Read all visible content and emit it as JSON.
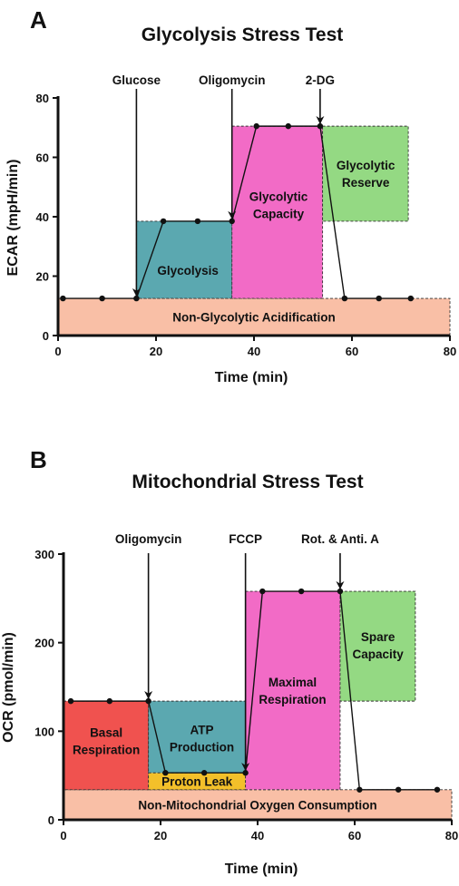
{
  "chart_data": [
    {
      "type": "line",
      "panel": "A",
      "title": "Glycolysis Stress Test",
      "xlabel": "Time (min)",
      "ylabel": "ECAR (mpH/min)",
      "xlim": [
        0,
        80
      ],
      "ylim": [
        0,
        80
      ],
      "xticks": [
        "0",
        "20",
        "40",
        "60",
        "80"
      ],
      "yticks": [
        "0",
        "20",
        "40",
        "60",
        "80"
      ],
      "series": [
        {
          "x": [
            1,
            9,
            16,
            21.5,
            28.5,
            35.5,
            40.5,
            47,
            53.5,
            58.5,
            65.5,
            72
          ],
          "y": [
            12.5,
            12.5,
            12.5,
            38.5,
            38.5,
            38.5,
            70.5,
            70.5,
            70.5,
            12.5,
            12.5,
            12.5
          ]
        }
      ],
      "injections": [
        {
          "label": "Glucose",
          "x": 16
        },
        {
          "label": "Oligomycin",
          "x": 35.5
        },
        {
          "label": "2-DG",
          "x": 53.5
        }
      ],
      "regions": [
        {
          "label": "Non-Glycolytic Acidification",
          "x0": 0,
          "x1": 80,
          "y0": 0,
          "y1": 12.5,
          "color": "#f9bfa6"
        },
        {
          "label": "Glycolysis",
          "x0": 16,
          "x1": 35.5,
          "y0": 12.5,
          "y1": 38.5,
          "color": "#5ba8b0"
        },
        {
          "label": "Glycolytic Capacity",
          "x0": 35.5,
          "x1": 54,
          "y0": 12.5,
          "y1": 70.5,
          "color": "#f26bc6"
        },
        {
          "label": "Glycolytic Reserve",
          "x0": 54,
          "x1": 71.5,
          "y0": 38.5,
          "y1": 70.5,
          "color": "#94d983"
        }
      ]
    },
    {
      "type": "line",
      "panel": "B",
      "title": "Mitochondrial Stress Test",
      "xlabel": "Time (min)",
      "ylabel": "OCR (pmol/min)",
      "xlim": [
        0,
        80
      ],
      "ylim": [
        0,
        300
      ],
      "xticks": [
        "0",
        "20",
        "40",
        "60",
        "80"
      ],
      "yticks": [
        "0",
        "100",
        "200",
        "300"
      ],
      "series": [
        {
          "x": [
            1.5,
            9.5,
            17.5,
            21,
            29,
            37.5,
            41,
            49,
            57,
            61,
            69,
            77
          ],
          "y": [
            134,
            134,
            134,
            53,
            53,
            53,
            258,
            258,
            258,
            34,
            34,
            34
          ]
        }
      ],
      "injections": [
        {
          "label": "Oligomycin",
          "x": 17.5
        },
        {
          "label": "FCCP",
          "x": 37.5
        },
        {
          "label": "Rot. & Anti. A",
          "x": 57
        }
      ],
      "regions": [
        {
          "label": "Non-Mitochondrial Oxygen Consumption",
          "x0": 0,
          "x1": 80,
          "y0": 0,
          "y1": 34,
          "color": "#f9bfa6"
        },
        {
          "label": "Basal Respiration",
          "x0": 0,
          "x1": 17.5,
          "y0": 34,
          "y1": 134,
          "color": "#f0524f"
        },
        {
          "label": "Proton Leak",
          "x0": 17.5,
          "x1": 37.5,
          "y0": 34,
          "y1": 53,
          "color": "#f3c02a"
        },
        {
          "label": "ATP Production",
          "x0": 17.5,
          "x1": 37.5,
          "y0": 53,
          "y1": 134,
          "color": "#5ba8b0"
        },
        {
          "label": "Maximal Respiration",
          "x0": 37.5,
          "x1": 57,
          "y0": 34,
          "y1": 258,
          "color": "#f26bc6"
        },
        {
          "label": "Spare Capacity",
          "x0": 57,
          "x1": 72.5,
          "y0": 134,
          "y1": 258,
          "color": "#94d983"
        }
      ]
    }
  ]
}
